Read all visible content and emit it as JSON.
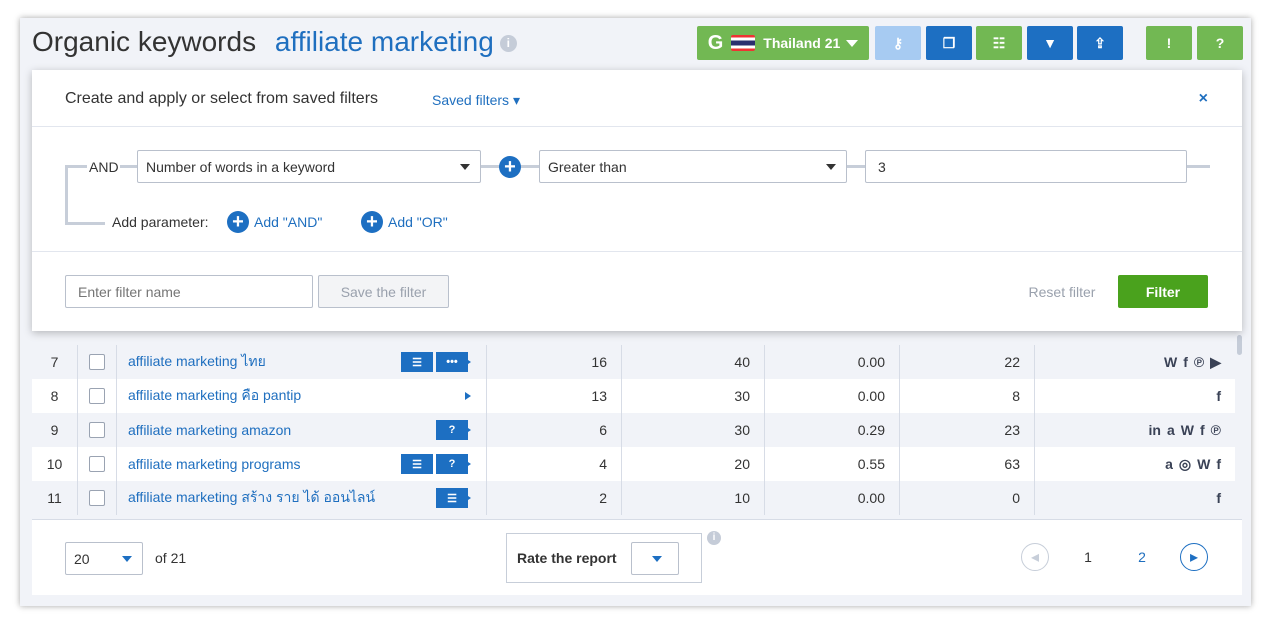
{
  "header": {
    "title": "Organic keywords",
    "keyword": "affiliate marketing",
    "info": "i",
    "database": "Thailand 21",
    "google": "G"
  },
  "filter": {
    "heading": "Create and apply or select from saved filters",
    "saved_filters": "Saved filters",
    "close": "×",
    "operator": "AND",
    "parameter": "Number of words in a keyword",
    "condition": "Greater than",
    "value": "3",
    "add_parameter": "Add parameter:",
    "add_and": "Add \"AND\"",
    "add_or": "Add \"OR\"",
    "name_placeholder": "Enter filter name",
    "save": "Save the filter",
    "reset": "Reset filter",
    "apply": "Filter"
  },
  "rows": [
    {
      "n": "7",
      "keyword": "affiliate marketing ไทย",
      "actions": [
        "list",
        "more"
      ],
      "a": "16",
      "b": "40",
      "c": "0.00",
      "d": "22",
      "social": [
        "wikipedia",
        "facebook",
        "pinterest",
        "youtube"
      ]
    },
    {
      "n": "8",
      "keyword": "affiliate marketing คือ pantip",
      "actions": [],
      "a": "13",
      "b": "30",
      "c": "0.00",
      "d": "8",
      "social": [
        "facebook"
      ]
    },
    {
      "n": "9",
      "keyword": "affiliate marketing amazon",
      "actions": [
        "help"
      ],
      "a": "6",
      "b": "30",
      "c": "0.29",
      "d": "23",
      "social": [
        "linkedin",
        "amazon",
        "wikipedia",
        "facebook",
        "pinterest"
      ]
    },
    {
      "n": "10",
      "keyword": "affiliate marketing programs",
      "actions": [
        "list",
        "help"
      ],
      "a": "4",
      "b": "20",
      "c": "0.55",
      "d": "63",
      "social": [
        "amazon",
        "instagram",
        "wikipedia",
        "facebook"
      ]
    },
    {
      "n": "11",
      "keyword": "affiliate marketing สร้าง ราย ได้ ออนไลน์",
      "actions": [
        "list"
      ],
      "a": "2",
      "b": "10",
      "c": "0.00",
      "d": "0",
      "social": [
        "facebook"
      ]
    }
  ],
  "footer": {
    "per_page": "20",
    "of": "of 21",
    "rate": "Rate the report",
    "pages": [
      "1",
      "2"
    ],
    "current_page": "1"
  }
}
